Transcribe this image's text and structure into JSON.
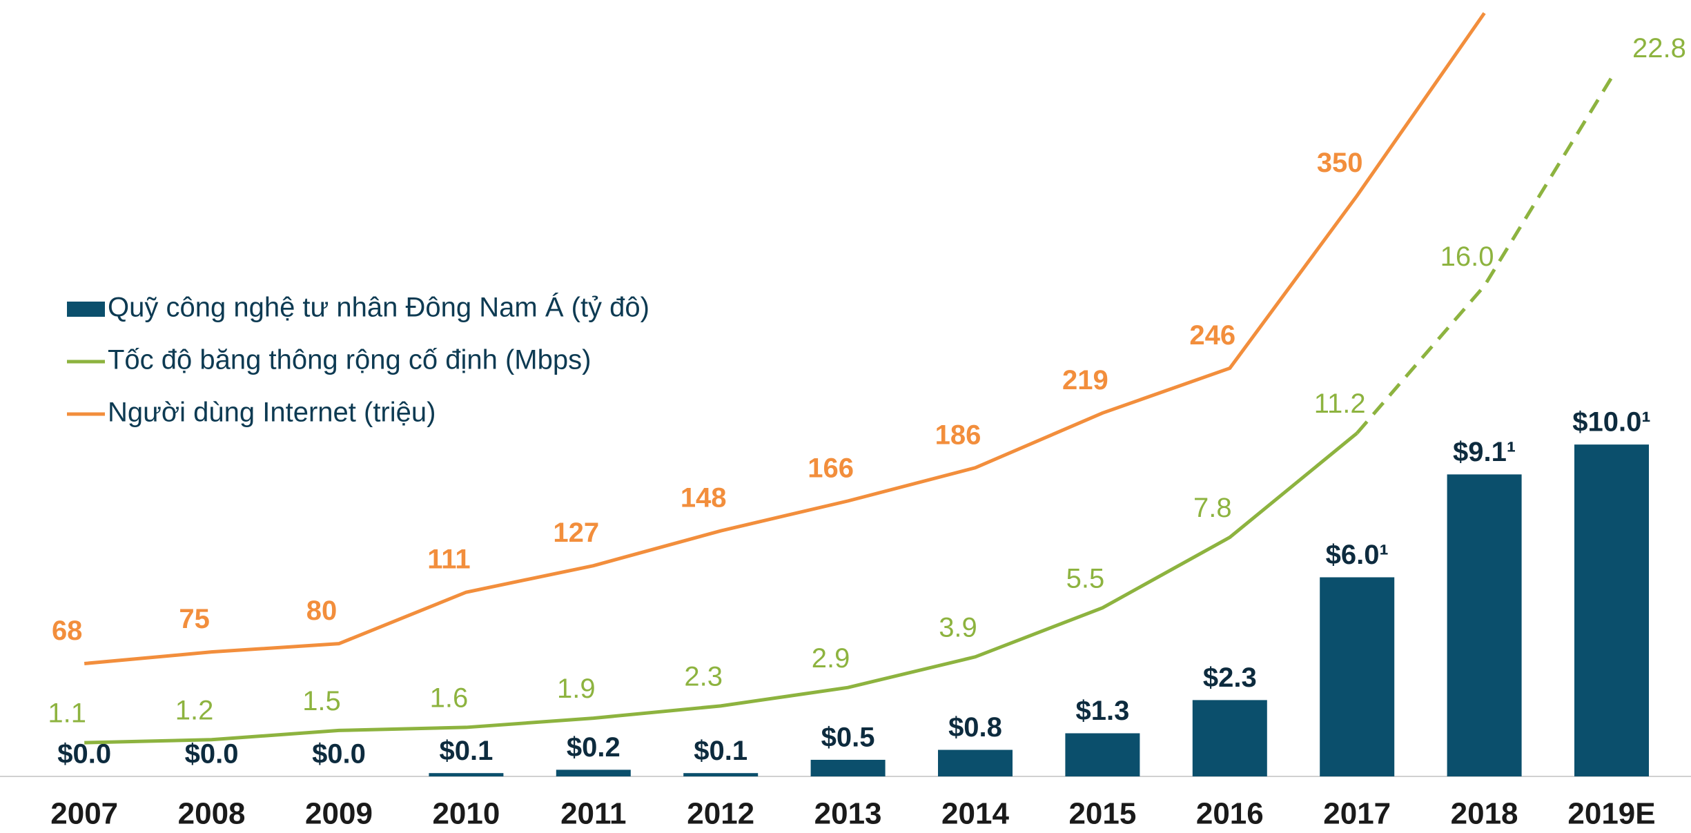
{
  "chart_data": {
    "type": "bar_line_combo",
    "categories": [
      "2007",
      "2008",
      "2009",
      "2010",
      "2011",
      "2012",
      "2013",
      "2014",
      "2015",
      "2016",
      "2017",
      "2018",
      "2019E"
    ],
    "series": [
      {
        "name": "Quỹ công nghệ tư nhân Đông Nam Á (tỷ đô)",
        "type": "bar",
        "color": "#0b4f6c",
        "values": [
          0.0,
          0.0,
          0.0,
          0.1,
          0.2,
          0.1,
          0.5,
          0.8,
          1.3,
          2.3,
          6.0,
          9.1,
          10.0
        ],
        "value_labels": [
          "$0.0",
          "$0.0",
          "$0.0",
          "$0.1",
          "$0.2",
          "$0.1",
          "$0.5",
          "$0.8",
          "$1.3",
          "$2.3",
          "$6.0¹",
          "$9.1¹",
          "$10.0¹"
        ],
        "ylim": [
          0,
          23
        ]
      },
      {
        "name": "Tốc độ băng thông rộng cố định (Mbps)",
        "type": "line",
        "color": "#8db33f",
        "values": [
          1.1,
          1.2,
          1.5,
          1.6,
          1.9,
          2.3,
          2.9,
          3.9,
          5.5,
          7.8,
          11.2,
          16.0,
          22.8
        ],
        "value_labels": [
          "1.1",
          "1.2",
          "1.5",
          "1.6",
          "1.9",
          "2.3",
          "2.9",
          "3.9",
          "5.5",
          "7.8",
          "11.2",
          "16.0",
          "22.8"
        ],
        "ylim": [
          0,
          24.9
        ],
        "dashed_from": 10
      },
      {
        "name": "Người dùng Internet (triệu)",
        "type": "line",
        "color": "#f28e3c",
        "values": [
          68,
          75,
          80,
          111,
          127,
          148,
          166,
          186,
          219,
          246,
          350,
          460,
          null
        ],
        "ylim": [
          0,
          460
        ]
      }
    ]
  }
}
